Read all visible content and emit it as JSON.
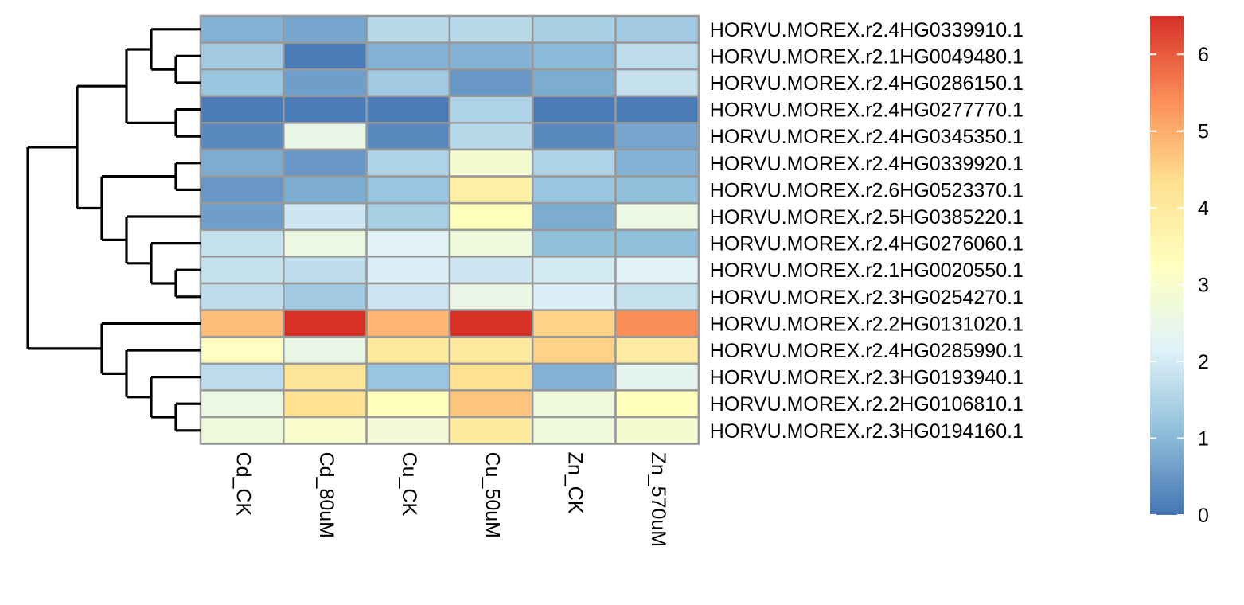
{
  "chart_data": {
    "type": "heatmap",
    "columns": [
      "Cd_CK",
      "Cd_80uM",
      "Cu_CK",
      "Cu_50uM",
      "Zn_CK",
      "Zn_570uM"
    ],
    "rows": [
      "HORVU.MOREX.r2.4HG0339910.1",
      "HORVU.MOREX.r2.1HG0049480.1",
      "HORVU.MOREX.r2.4HG0286150.1",
      "HORVU.MOREX.r2.4HG0277770.1",
      "HORVU.MOREX.r2.4HG0345350.1",
      "HORVU.MOREX.r2.4HG0339920.1",
      "HORVU.MOREX.r2.6HG0523370.1",
      "HORVU.MOREX.r2.5HG0385220.1",
      "HORVU.MOREX.r2.4HG0276060.1",
      "HORVU.MOREX.r2.1HG0020550.1",
      "HORVU.MOREX.r2.3HG0254270.1",
      "HORVU.MOREX.r2.2HG0131020.1",
      "HORVU.MOREX.r2.4HG0285990.1",
      "HORVU.MOREX.r2.3HG0193940.1",
      "HORVU.MOREX.r2.2HG0106810.1",
      "HORVU.MOREX.r2.3HG0194160.1"
    ],
    "values": [
      [
        0.9,
        0.7,
        1.6,
        1.6,
        1.4,
        1.3
      ],
      [
        1.3,
        0.1,
        0.9,
        0.9,
        1.0,
        1.7
      ],
      [
        1.2,
        0.6,
        1.3,
        0.5,
        0.8,
        1.8
      ],
      [
        0.1,
        0.1,
        0.1,
        1.5,
        0.1,
        0.1
      ],
      [
        0.3,
        2.5,
        0.3,
        1.6,
        0.3,
        0.7
      ],
      [
        0.8,
        0.5,
        1.5,
        2.9,
        1.5,
        0.9
      ],
      [
        0.5,
        0.8,
        1.2,
        3.8,
        1.2,
        1.1
      ],
      [
        0.6,
        1.9,
        1.4,
        3.3,
        0.8,
        2.6
      ],
      [
        1.8,
        2.6,
        2.2,
        2.7,
        1.1,
        1.1
      ],
      [
        1.8,
        1.7,
        2.1,
        1.9,
        2.0,
        2.2
      ],
      [
        1.7,
        1.3,
        1.9,
        2.5,
        2.1,
        1.8
      ],
      [
        4.8,
        6.5,
        4.9,
        6.5,
        4.5,
        5.4
      ],
      [
        3.2,
        2.5,
        4.0,
        4.0,
        4.5,
        3.9
      ],
      [
        1.7,
        4.2,
        1.2,
        4.3,
        0.9,
        2.3
      ],
      [
        2.6,
        4.3,
        3.3,
        4.7,
        2.7,
        3.3
      ],
      [
        2.7,
        3.0,
        2.8,
        4.0,
        2.7,
        2.9
      ]
    ],
    "colorbar": {
      "ticks": [
        0,
        1,
        2,
        3,
        4,
        5,
        6
      ],
      "range": [
        0,
        6.5
      ],
      "palette": [
        "#4575B4",
        "#91BFDB",
        "#E0F3F8",
        "#FFFFBF",
        "#FEE090",
        "#FC8D59",
        "#D73027"
      ]
    },
    "dendrogram": {
      "side": "left",
      "tree": [
        [
          [
            [
              [
                0,
                [
                  1,
                  2
                ]
              ],
              [
                3,
                4
              ]
            ],
            [
              [
                5,
                6
              ],
              [
                7,
                [
                  8,
                  [
                    9,
                    10
                  ]
                ]
              ]
            ]
          ]
        ],
        [
          11,
          [
            12,
            [
              13,
              [
                14,
                15
              ]
            ]
          ]
        ]
      ]
    },
    "cell_border_color": "#999999"
  }
}
